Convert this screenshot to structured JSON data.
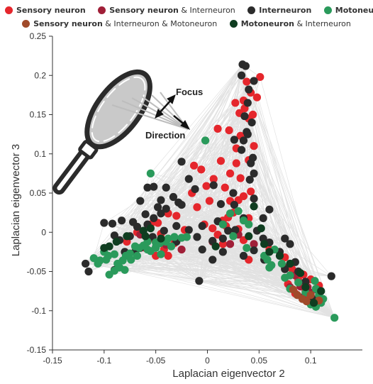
{
  "colors": {
    "sensory": "#e5262c",
    "sensory_inter": "#a01f38",
    "inter": "#2b2b2b",
    "moto": "#2a9a5b",
    "sensory_inter_moto": "#a04a2a",
    "moto_inter": "#0f3d20",
    "edge": "#e2e2e2",
    "axis": "#333333"
  },
  "legend": [
    {
      "name": "legend-sensory",
      "color_key": "sensory",
      "bold": "Sensory neuron",
      "rest": ""
    },
    {
      "name": "legend-sensory-inter",
      "color_key": "sensory_inter",
      "bold": "Sensory neuron",
      "rest": " & Interneuron"
    },
    {
      "name": "legend-inter",
      "color_key": "inter",
      "bold": "Interneuron",
      "rest": ""
    },
    {
      "name": "legend-moto",
      "color_key": "moto",
      "bold": "Motoneuron",
      "rest": ""
    },
    {
      "name": "legend-sensory-inter-moto",
      "color_key": "sensory_inter_moto",
      "bold": "Sensory neuron",
      "rest": " & Interneuron & Motoneuron"
    },
    {
      "name": "legend-moto-inter",
      "color_key": "moto_inter",
      "bold": "Motoneuron",
      "rest": " & Interneuron"
    }
  ],
  "icon": {
    "name": "magnifier-icon",
    "focus_label": "Focus",
    "direction_label": "Direction"
  },
  "chart_data": {
    "type": "scatter",
    "xlabel": "Laplacian eigenvector 2",
    "ylabel": "Laplacian eigenvector 3",
    "xlim": [
      -0.15,
      0.15
    ],
    "ylim": [
      -0.15,
      0.25
    ],
    "xticks": [
      -0.15,
      -0.1,
      -0.05,
      0,
      0.05,
      0.1
    ],
    "xticklabels": [
      "-0.15",
      "-0.1",
      "-0.05",
      "0",
      "0.05",
      "0.1"
    ],
    "yticks": [
      -0.15,
      -0.1,
      -0.05,
      0,
      0.05,
      0.1,
      0.15,
      0.2,
      0.25
    ],
    "yticklabels": [
      "-0.15",
      "-0.1",
      "-0.05",
      "0",
      "0.05",
      "0.1",
      "0.15",
      "0.2",
      "0.25"
    ],
    "grid": false,
    "edges_shown": true,
    "series": [
      {
        "name": "Sensory neuron",
        "color_key": "sensory",
        "points": [
          [
            0.051,
            0.198
          ],
          [
            0.038,
            0.192
          ],
          [
            0.042,
            0.178
          ],
          [
            0.048,
            0.172
          ],
          [
            0.035,
            0.168
          ],
          [
            0.027,
            0.165
          ],
          [
            0.036,
            0.158
          ],
          [
            0.031,
            0.152
          ],
          [
            0.04,
            0.145
          ],
          [
            0.044,
            0.15
          ],
          [
            0.01,
            0.132
          ],
          [
            0.021,
            0.13
          ],
          [
            0.032,
            0.123
          ],
          [
            0.028,
            0.107
          ],
          [
            0.045,
            0.11
          ],
          [
            0.013,
            0.091
          ],
          [
            0.028,
            0.088
          ],
          [
            0.04,
            0.092
          ],
          [
            -0.013,
            0.085
          ],
          [
            -0.006,
            0.08
          ],
          [
            0.022,
            0.075
          ],
          [
            0.006,
            0.068
          ],
          [
            0.032,
            0.069
          ],
          [
            -0.001,
            0.059
          ],
          [
            0.017,
            0.057
          ],
          [
            0.042,
            0.052
          ],
          [
            0.035,
            0.046
          ],
          [
            -0.015,
            0.05
          ],
          [
            0.03,
            0.041
          ],
          [
            0.022,
            0.04
          ],
          [
            0.002,
            0.04
          ],
          [
            -0.01,
            0.032
          ],
          [
            0.025,
            0.025
          ],
          [
            0.02,
            0.019
          ],
          [
            -0.03,
            0.021
          ],
          [
            -0.038,
            0.024
          ],
          [
            0.04,
            0.018
          ],
          [
            0.015,
            0.015
          ],
          [
            -0.003,
            0.01
          ],
          [
            -0.048,
            0.012
          ],
          [
            -0.055,
            0.01
          ],
          [
            0.018,
            0.008
          ],
          [
            0.005,
            0.005
          ],
          [
            0.03,
            0.004
          ],
          [
            -0.022,
            0.003
          ],
          [
            -0.068,
            0.0
          ],
          [
            -0.045,
            -0.002
          ],
          [
            0.01,
            -0.003
          ],
          [
            -0.055,
            -0.008
          ],
          [
            0.035,
            -0.01
          ],
          [
            -0.078,
            -0.012
          ],
          [
            -0.032,
            -0.014
          ],
          [
            0.015,
            -0.015
          ],
          [
            -0.06,
            -0.02
          ],
          [
            -0.042,
            -0.022
          ],
          [
            -0.07,
            -0.025
          ],
          [
            -0.05,
            -0.03
          ],
          [
            -0.038,
            -0.03
          ],
          [
            0.06,
            -0.022
          ],
          [
            0.075,
            -0.032
          ],
          [
            0.04,
            -0.035
          ],
          [
            0.082,
            -0.047
          ],
          [
            0.093,
            -0.054
          ],
          [
            0.088,
            -0.061
          ],
          [
            0.1,
            -0.06
          ],
          [
            0.108,
            -0.068
          ],
          [
            0.078,
            -0.066
          ],
          [
            0.095,
            -0.075
          ],
          [
            0.085,
            -0.078
          ],
          [
            0.098,
            -0.082
          ]
        ]
      },
      {
        "name": "Sensory neuron & Interneuron",
        "color_key": "sensory_inter",
        "points": [
          [
            0.015,
            0.01
          ],
          [
            0.03,
            -0.003
          ],
          [
            0.005,
            -0.012
          ],
          [
            0.022,
            -0.015
          ],
          [
            -0.065,
            -0.003
          ],
          [
            -0.04,
            -0.016
          ],
          [
            -0.025,
            -0.022
          ],
          [
            0.045,
            -0.015
          ],
          [
            0.075,
            -0.045
          ],
          [
            0.085,
            -0.055
          ],
          [
            0.09,
            -0.069
          ],
          [
            0.097,
            -0.07
          ],
          [
            0.08,
            -0.07
          ],
          [
            0.1,
            -0.077
          ],
          [
            0.092,
            -0.083
          ]
        ]
      },
      {
        "name": "Interneuron",
        "color_key": "inter",
        "points": [
          [
            0.034,
            0.214
          ],
          [
            0.037,
            0.212
          ],
          [
            0.033,
            0.2
          ],
          [
            0.045,
            0.193
          ],
          [
            0.04,
            0.182
          ],
          [
            0.039,
            0.165
          ],
          [
            0.036,
            0.148
          ],
          [
            0.043,
            0.14
          ],
          [
            0.038,
            0.128
          ],
          [
            0.026,
            0.118
          ],
          [
            0.039,
            0.125
          ],
          [
            0.035,
            0.117
          ],
          [
            0.033,
            0.105
          ],
          [
            0.044,
            0.095
          ],
          [
            0.042,
            0.088
          ],
          [
            -0.04,
            0.057
          ],
          [
            -0.052,
            0.058
          ],
          [
            -0.058,
            0.057
          ],
          [
            -0.033,
            0.045
          ],
          [
            -0.028,
            0.038
          ],
          [
            -0.04,
            0.03
          ],
          [
            -0.048,
            0.032
          ],
          [
            -0.045,
            0.041
          ],
          [
            -0.025,
            0.035
          ],
          [
            -0.012,
            0.055
          ],
          [
            -0.018,
            0.068
          ],
          [
            -0.025,
            0.09
          ],
          [
            0.013,
            0.036
          ],
          [
            0.026,
            0.035
          ],
          [
            0.006,
            0.06
          ],
          [
            0.045,
            0.075
          ],
          [
            0.025,
            0.05
          ],
          [
            0.041,
            0.067
          ],
          [
            0.06,
            0.029
          ],
          [
            -0.06,
            0.023
          ],
          [
            -0.045,
            0.024
          ],
          [
            -0.052,
            0.018
          ],
          [
            -0.072,
            0.013
          ],
          [
            -0.083,
            0.015
          ],
          [
            -0.058,
            0.01
          ],
          [
            -0.03,
            0.008
          ],
          [
            -0.005,
            0.008
          ],
          [
            0.01,
            0.014
          ],
          [
            0.035,
            0.018
          ],
          [
            0.054,
            0.018
          ],
          [
            -0.092,
            0.011
          ],
          [
            -0.1,
            0.012
          ],
          [
            -0.068,
            0.007
          ],
          [
            -0.042,
            0.002
          ],
          [
            -0.018,
            0.003
          ],
          [
            0.027,
            0.003
          ],
          [
            0.048,
            0.002
          ],
          [
            -0.09,
            -0.004
          ],
          [
            -0.075,
            -0.005
          ],
          [
            -0.053,
            -0.006
          ],
          [
            -0.01,
            -0.006
          ],
          [
            0.015,
            -0.008
          ],
          [
            0.054,
            -0.008
          ],
          [
            0.075,
            -0.008
          ],
          [
            -0.085,
            -0.01
          ],
          [
            -0.03,
            -0.012
          ],
          [
            0.005,
            -0.011
          ],
          [
            0.06,
            -0.013
          ],
          [
            0.08,
            -0.015
          ],
          [
            -0.065,
            -0.02
          ],
          [
            -0.005,
            -0.022
          ],
          [
            0.045,
            -0.023
          ],
          [
            0.07,
            -0.025
          ],
          [
            -0.07,
            -0.025
          ],
          [
            0.015,
            -0.025
          ],
          [
            0.005,
            -0.035
          ],
          [
            0.055,
            -0.035
          ],
          [
            0.085,
            -0.038
          ],
          [
            0.075,
            -0.047
          ],
          [
            0.088,
            -0.05
          ],
          [
            -0.118,
            -0.04
          ],
          [
            -0.115,
            -0.05
          ],
          [
            -0.09,
            -0.048
          ],
          [
            0.095,
            -0.063
          ],
          [
            0.12,
            -0.056
          ],
          [
            0.107,
            -0.074
          ],
          [
            0.102,
            -0.085
          ],
          [
            -0.008,
            -0.062
          ],
          [
            0.045,
            0.043
          ],
          [
            -0.065,
            0.04
          ],
          [
            0.02,
            0.002
          ],
          [
            0.035,
            -0.03
          ],
          [
            -0.08,
            -0.025
          ]
        ]
      },
      {
        "name": "Motoneuron",
        "color_key": "moto",
        "points": [
          [
            -0.002,
            0.117
          ],
          [
            -0.055,
            0.075
          ],
          [
            0.022,
            0.024
          ],
          [
            0.03,
            0.027
          ],
          [
            0.035,
            0.015
          ],
          [
            -0.04,
            -0.012
          ],
          [
            -0.05,
            -0.013
          ],
          [
            -0.058,
            -0.012
          ],
          [
            -0.062,
            -0.017
          ],
          [
            -0.066,
            -0.02
          ],
          [
            -0.058,
            -0.022
          ],
          [
            -0.05,
            -0.019
          ],
          [
            -0.046,
            -0.014
          ],
          [
            -0.038,
            -0.008
          ],
          [
            -0.032,
            -0.006
          ],
          [
            -0.025,
            -0.007
          ],
          [
            -0.02,
            -0.006
          ],
          [
            -0.07,
            -0.018
          ],
          [
            -0.075,
            -0.027
          ],
          [
            -0.079,
            -0.03
          ],
          [
            -0.082,
            -0.036
          ],
          [
            -0.087,
            -0.04
          ],
          [
            -0.09,
            -0.028
          ],
          [
            -0.096,
            -0.03
          ],
          [
            -0.1,
            -0.025
          ],
          [
            -0.098,
            -0.035
          ],
          [
            -0.104,
            -0.036
          ],
          [
            -0.106,
            -0.04
          ],
          [
            -0.11,
            -0.033
          ],
          [
            -0.085,
            -0.045
          ],
          [
            -0.09,
            -0.049
          ],
          [
            -0.095,
            -0.054
          ],
          [
            -0.08,
            -0.048
          ],
          [
            -0.074,
            -0.035
          ],
          [
            -0.068,
            -0.03
          ],
          [
            -0.055,
            -0.024
          ],
          [
            -0.05,
            -0.02
          ],
          [
            -0.045,
            -0.028
          ],
          [
            0.015,
            0.01
          ],
          [
            0.025,
            -0.005
          ],
          [
            0.038,
            -0.02
          ],
          [
            0.055,
            -0.03
          ],
          [
            0.058,
            -0.035
          ],
          [
            0.06,
            -0.045
          ],
          [
            0.075,
            -0.058
          ],
          [
            0.08,
            -0.055
          ],
          [
            0.088,
            -0.064
          ],
          [
            0.095,
            -0.077
          ],
          [
            0.104,
            -0.062
          ],
          [
            0.105,
            -0.072
          ],
          [
            0.108,
            -0.08
          ],
          [
            0.112,
            -0.085
          ],
          [
            0.11,
            -0.09
          ],
          [
            0.1,
            -0.092
          ],
          [
            0.105,
            -0.095
          ],
          [
            0.123,
            -0.109
          ],
          [
            0.08,
            -0.072
          ],
          [
            0.072,
            -0.04
          ],
          [
            0.065,
            -0.022
          ],
          [
            -0.035,
            -0.018
          ],
          [
            0.04,
            0.01
          ],
          [
            0.062,
            -0.042
          ]
        ]
      },
      {
        "name": "Sensory neuron & Interneuron & Motoneuron",
        "color_key": "sensory_inter_moto",
        "points": [
          [
            0.083,
            -0.073
          ],
          [
            0.092,
            -0.085
          ],
          [
            0.096,
            -0.088
          ],
          [
            0.1,
            -0.08
          ],
          [
            0.108,
            -0.087
          ],
          [
            0.087,
            -0.08
          ]
        ]
      },
      {
        "name": "Motoneuron & Interneuron",
        "color_key": "moto_inter",
        "points": [
          [
            0.045,
            0.033
          ],
          [
            0.052,
            0.005
          ],
          [
            -0.055,
            0.005
          ],
          [
            -0.062,
            0.002
          ],
          [
            -0.078,
            -0.005
          ],
          [
            -0.088,
            -0.012
          ],
          [
            -0.095,
            -0.018
          ],
          [
            -0.1,
            -0.02
          ],
          [
            -0.045,
            -0.008
          ],
          [
            0.04,
            -0.005
          ],
          [
            0.055,
            -0.015
          ],
          [
            0.06,
            -0.025
          ],
          [
            0.07,
            -0.03
          ],
          [
            0.08,
            -0.04
          ],
          [
            0.09,
            -0.052
          ],
          [
            0.095,
            -0.07
          ],
          [
            0.11,
            -0.075
          ],
          [
            0.103,
            -0.09
          ],
          [
            0.008,
            -0.018
          ],
          [
            -0.06,
            -0.005
          ]
        ]
      }
    ]
  }
}
